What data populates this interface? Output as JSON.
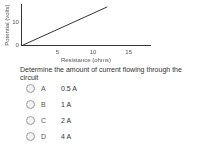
{
  "chart_data": {
    "type": "line",
    "x_label": "Resistance (ohms)",
    "y_label": "Potential (volts)",
    "x": [
      0,
      12
    ],
    "values": [
      0,
      17
    ],
    "color": "#333333",
    "xlim": [
      0,
      18
    ],
    "xticks": [
      5,
      10,
      15
    ],
    "ylim": [
      0,
      18
    ],
    "yticks": [
      0,
      10
    ],
    "grid": false
  },
  "question": "Determine the amount of current flowing through the circuit",
  "options": [
    {
      "letter": "A",
      "text": "0.5 A"
    },
    {
      "letter": "B",
      "text": "1 A"
    },
    {
      "letter": "C",
      "text": "2 A"
    },
    {
      "letter": "D",
      "text": "4 A"
    }
  ]
}
